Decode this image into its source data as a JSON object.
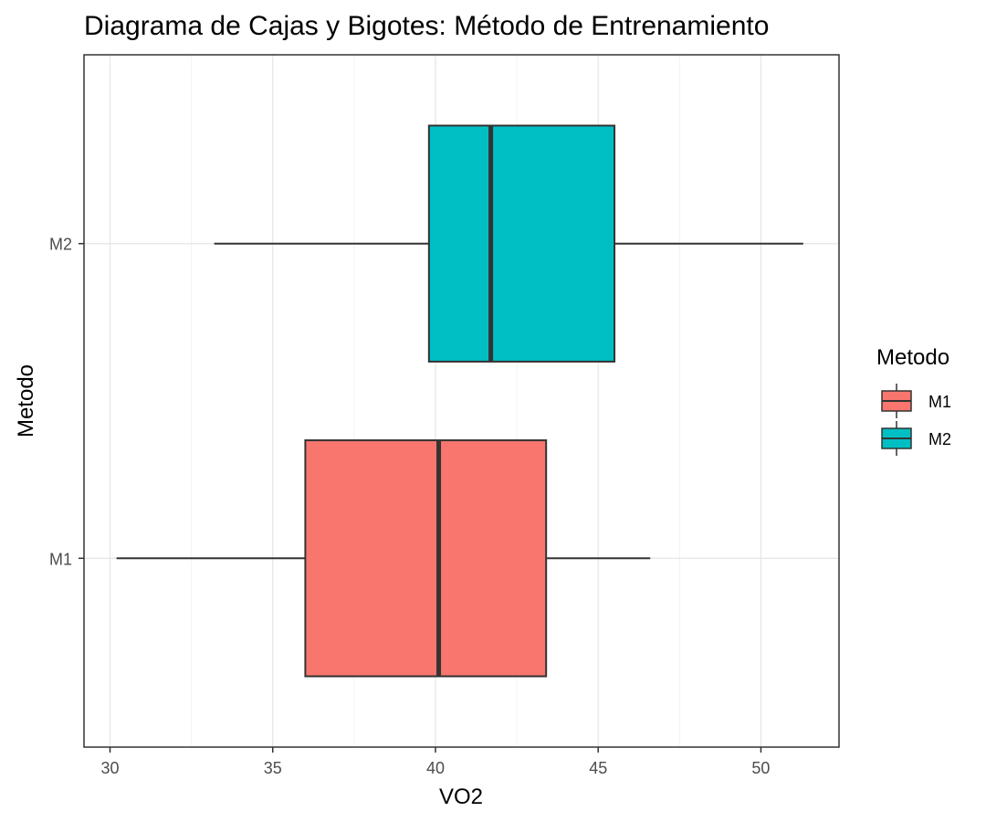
{
  "chart_data": {
    "type": "boxplot",
    "orientation": "horizontal",
    "title": "Diagrama de Cajas y Bigotes: Método de Entrenamiento",
    "xlabel": "VO2",
    "ylabel": "Metodo",
    "xlim": [
      29.2,
      52.4
    ],
    "xticks": [
      30,
      35,
      40,
      45,
      50
    ],
    "categories": [
      "M1",
      "M2"
    ],
    "grid": true,
    "legend": {
      "title": "Metodo",
      "position": "right",
      "entries": [
        "M1",
        "M2"
      ]
    },
    "series": [
      {
        "category": "M1",
        "min": 30.2,
        "q1": 36.0,
        "median": 40.1,
        "q3": 43.4,
        "max": 46.6,
        "color": "#F8766D"
      },
      {
        "category": "M2",
        "min": 33.2,
        "q1": 39.8,
        "median": 41.7,
        "q3": 45.5,
        "max": 51.3,
        "color": "#00BFC4"
      }
    ]
  }
}
